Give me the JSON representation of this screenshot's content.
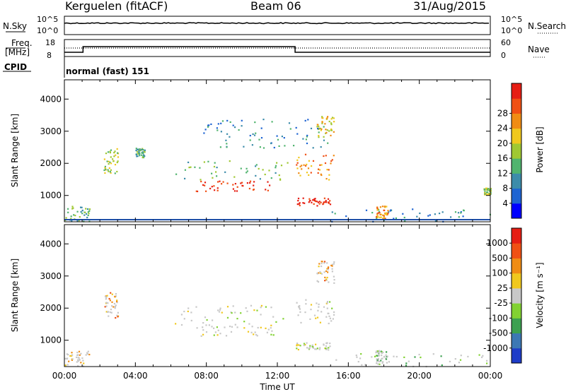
{
  "header": {
    "radar": "Kerguelen (fitACF)",
    "beam": "Beam 06",
    "date": "31/Aug/2015"
  },
  "status": {
    "nsky_label": "N.Sky",
    "nsky_ticks": [
      "10^5",
      "10^0"
    ],
    "nsearch_label": "N.Search",
    "nsearch_ticks": [
      "10^5",
      "10^0"
    ],
    "freq_label": "Freq.",
    "freq_unit": "[MHz]",
    "freq_ticks": [
      "18",
      "8"
    ],
    "nave_label": "Nave",
    "nave_ticks": [
      "60",
      "0"
    ],
    "cpid_label": "CPID",
    "cpid_value": "normal (fast) 151"
  },
  "chart_data": [
    {
      "type": "heatmap",
      "name": "power-panel",
      "ylabel": "Slant Range [km]",
      "xlim": [
        0,
        24
      ],
      "ylim": [
        180,
        4600
      ],
      "yticks": [
        "1000",
        "2000",
        "3000",
        "4000"
      ],
      "colorbar": {
        "label": "Power [dB]",
        "ticks": [
          "4",
          "8",
          "12",
          "16",
          "20",
          "24",
          "28"
        ],
        "colors": [
          "#0000ff",
          "#1e64d2",
          "#3c8caa",
          "#50b46e",
          "#a0c832",
          "#f0c81e",
          "#f08c14",
          "#f05014",
          "#e61e14"
        ]
      },
      "scatter_regions": [
        {
          "t": [
            0.0,
            1.4
          ],
          "r": [
            200,
            700
          ],
          "level": 3
        },
        {
          "t": [
            2.2,
            3.0
          ],
          "r": [
            1700,
            2500
          ],
          "level": 4
        },
        {
          "t": [
            4.0,
            4.5
          ],
          "r": [
            2200,
            2500
          ],
          "level": 3
        },
        {
          "t": [
            6.2,
            12.6
          ],
          "r": [
            1500,
            2100
          ],
          "level": 3
        },
        {
          "t": [
            7.4,
            11.8
          ],
          "r": [
            1150,
            1500
          ],
          "level": 8
        },
        {
          "t": [
            13.0,
            15.2
          ],
          "r": [
            1500,
            2300
          ],
          "level": 6
        },
        {
          "t": [
            13.0,
            15.0
          ],
          "r": [
            700,
            950
          ],
          "level": 8
        },
        {
          "t": [
            14.2,
            15.2
          ],
          "r": [
            2800,
            3500
          ],
          "level": 5
        },
        {
          "t": [
            7.8,
            14.8
          ],
          "r": [
            2500,
            3400
          ],
          "level": 2
        },
        {
          "t": [
            15.0,
            24.0
          ],
          "r": [
            200,
            600
          ],
          "level": 2
        },
        {
          "t": [
            17.5,
            18.2
          ],
          "r": [
            300,
            700
          ],
          "level": 6
        },
        {
          "t": [
            23.6,
            24.0
          ],
          "r": [
            1050,
            1250
          ],
          "level": 4
        }
      ]
    },
    {
      "type": "heatmap",
      "name": "velocity-panel",
      "xlabel": "Time UT",
      "ylabel": "Slant Range [km]",
      "xlim": [
        0,
        24
      ],
      "ylim": [
        180,
        4600
      ],
      "xticks": [
        "00:00",
        "04:00",
        "08:00",
        "12:00",
        "16:00",
        "20:00",
        "00:00"
      ],
      "yticks": [
        "1000",
        "2000",
        "3000",
        "4000"
      ],
      "colorbar": {
        "label": "Velocity [m s⁻¹]",
        "ticks": [
          "1000",
          "500",
          "100",
          "25",
          "-25",
          "-100",
          "-500",
          "-1000"
        ],
        "colors": [
          "#1e3cc8",
          "#3c78b4",
          "#3ca050",
          "#82d232",
          "#c8c8c8",
          "#f0c81e",
          "#f08c14",
          "#f05014",
          "#e61e14"
        ]
      },
      "scatter_regions": [
        {
          "t": [
            0.0,
            1.4
          ],
          "r": [
            200,
            700
          ],
          "level": 5
        },
        {
          "t": [
            2.2,
            3.0
          ],
          "r": [
            1700,
            2500
          ],
          "level": 6
        },
        {
          "t": [
            6.2,
            12.6
          ],
          "r": [
            1500,
            2100
          ],
          "level": 4
        },
        {
          "t": [
            7.4,
            11.8
          ],
          "r": [
            1150,
            1500
          ],
          "level": 4
        },
        {
          "t": [
            13.0,
            15.2
          ],
          "r": [
            1500,
            2300
          ],
          "level": 4
        },
        {
          "t": [
            13.0,
            15.0
          ],
          "r": [
            700,
            950
          ],
          "level": 4
        },
        {
          "t": [
            14.2,
            15.2
          ],
          "r": [
            2800,
            3500
          ],
          "level": 6
        },
        {
          "t": [
            15.0,
            24.0
          ],
          "r": [
            200,
            600
          ],
          "level": 3
        },
        {
          "t": [
            17.5,
            18.2
          ],
          "r": [
            300,
            700
          ],
          "level": 3
        }
      ]
    }
  ]
}
